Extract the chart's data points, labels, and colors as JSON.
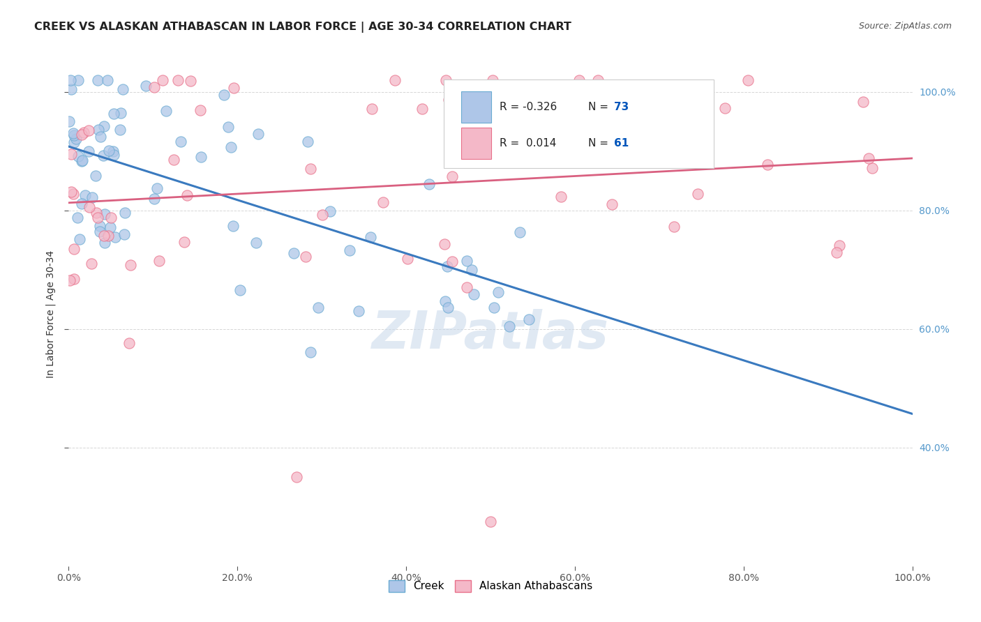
{
  "title": "CREEK VS ALASKAN ATHABASCAN IN LABOR FORCE | AGE 30-34 CORRELATION CHART",
  "source_text": "Source: ZipAtlas.com",
  "ylabel": "In Labor Force | Age 30-34",
  "creek_R": -0.326,
  "creek_N": 73,
  "athabascan_R": 0.014,
  "athabascan_N": 61,
  "creek_color": "#aec6e8",
  "creek_edge_color": "#6aabd2",
  "athabascan_color": "#f4b8c8",
  "athabascan_edge_color": "#e8708a",
  "creek_line_color": "#3a7abf",
  "athabascan_line_color": "#d96080",
  "dashed_line_color": "#a8c4dc",
  "watermark_color": "#c8d8ea",
  "background_color": "#ffffff",
  "grid_color": "#cccccc",
  "right_tick_color": "#5599cc",
  "title_color": "#222222",
  "source_color": "#555555",
  "legend_n_color": "#0055bb",
  "xlim": [
    0.0,
    1.0
  ],
  "ylim": [
    0.2,
    1.05
  ],
  "x_ticks": [
    0.0,
    0.2,
    0.4,
    0.6,
    0.8,
    1.0
  ],
  "y_ticks_right": [
    0.4,
    0.6,
    0.8,
    1.0
  ],
  "creek_seed": 12,
  "ath_seed": 77
}
